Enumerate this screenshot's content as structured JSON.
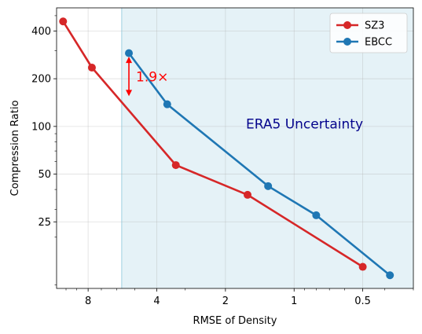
{
  "chart_data": {
    "type": "line",
    "xlabel": "RMSE of Density",
    "ylabel": "Compression Ratio",
    "x_scale": "log",
    "x_reversed": true,
    "y_scale": "log",
    "xlim": [
      11.0,
      0.3
    ],
    "ylim": [
      9.5,
      560
    ],
    "x_ticks": [
      8,
      4,
      2,
      1,
      0.5
    ],
    "x_tick_labels": [
      "8",
      "4",
      "2",
      "1",
      "0.5"
    ],
    "y_ticks": [
      25,
      50,
      100,
      200,
      400
    ],
    "y_tick_labels": [
      "25",
      "50",
      "100",
      "200",
      "400"
    ],
    "grid": true,
    "legend_position": "top-right",
    "series": [
      {
        "name": "SZ3",
        "color": "#d62728",
        "x": [
          10.3,
          7.7,
          3.3,
          1.6,
          0.5
        ],
        "y": [
          460,
          235,
          57,
          37,
          13
        ]
      },
      {
        "name": "EBCC",
        "color": "#1f77b4",
        "x": [
          5.3,
          3.6,
          1.3,
          0.8,
          0.38
        ],
        "y": [
          290,
          138,
          42,
          27.5,
          11.5
        ]
      }
    ],
    "shaded_region": {
      "label": "ERA5 Uncertainty",
      "x_from": 5.7,
      "x_to": 0.3,
      "color": "#add8e6",
      "label_color": "#00008b"
    },
    "annotation": {
      "text": "1.9×",
      "color": "#ff0000",
      "x": 5.3,
      "y_from": 285,
      "y_to": 150
    }
  }
}
